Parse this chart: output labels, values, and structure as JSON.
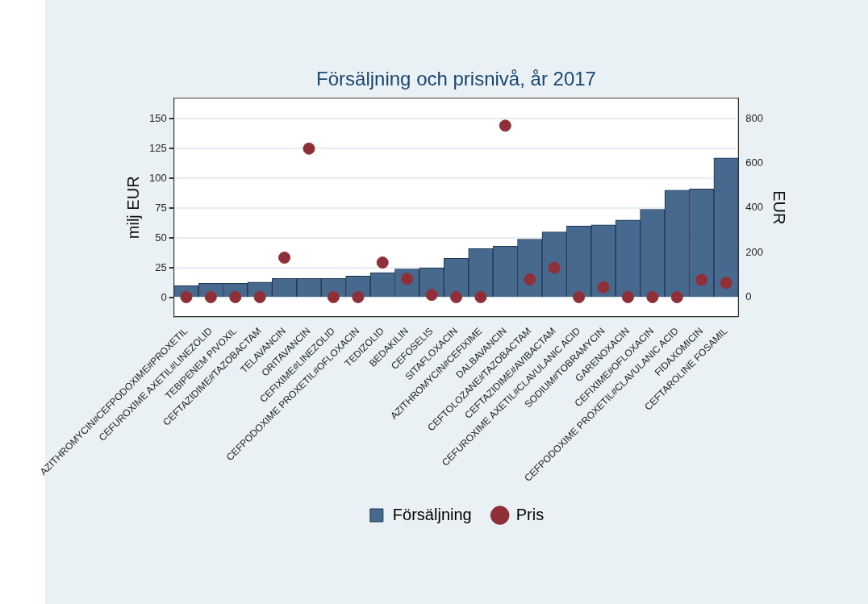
{
  "chart_data": {
    "type": "bar",
    "title": "Försäljning och prisnivå, år 2017",
    "ylabel": "milj EUR",
    "y2label": "EUR",
    "categories": [
      "AZITHROMYCIN#CEFPODOXIME#PROXETIL",
      "CEFUROXIME AXETIL#LINEZOLID",
      "TEBIPENEM PIVOXIL",
      "CEFTAZIDIME#TAZOBACTAM",
      "TELAVANCIN",
      "ORITAVANCIN",
      "CEFIXIME#LINEZOLID",
      "CEFPODOXIME PROXETIL#OFLOXACIN",
      "TEDIZOLID",
      "BEDAKILIN",
      "CEFOSELIS",
      "SITAFLOXACIN",
      "AZITHROMYCIN#CEFIXIME",
      "DALBAVANCIN",
      "CEFTOLOZANE#TAZOBACTAM",
      "CEFTAZIDIME#AVIBACTAM",
      "CEFUROXIME AXETIL#CLAVULANIC ACID",
      "SODIUM#TOBRAMYCIN",
      "GARENOXACIN",
      "CEFIXIME#OFLOXACIN",
      "CEFPODOXIME PROXETIL#CLAVULANIC ACID",
      "FIDAXOMICIN",
      "CEFTAROLINE FOSAMIL"
    ],
    "series": [
      {
        "name": "Försäljning",
        "color": "#48698e",
        "values": [
          10,
          12,
          12,
          13,
          16,
          16,
          16,
          18,
          21,
          24,
          25,
          33,
          41,
          43,
          49,
          55,
          60,
          61,
          65,
          74,
          90,
          91,
          117
        ]
      },
      {
        "name": "Pris",
        "type": "scatter",
        "axis": "y2",
        "color": "#8f3038",
        "x": [
          "AZITHROMYCIN#CEFPODOXIME#PROXETIL",
          "CEFUROXIME AXETIL#LINEZOLID",
          "TEBIPENEM PIVOXIL",
          "CEFTAZIDIME#TAZOBACTAM",
          "TELAVANCIN",
          "ORITAVANCIN",
          "CEFIXIME#LINEZOLID",
          "CEFPODOXIME PROXETIL#OFLOXACIN",
          "TEDIZOLID",
          "BEDAKILIN",
          "CEFOSELIS",
          "SITAFLOXACIN",
          "AZITHROMYCIN#CEFIXIME",
          "DALBAVANCIN",
          "CEFTOLOZANE#TAZOBACTAM",
          "CEFTAZIDIME#AVIBACTAM",
          "CEFUROXIME AXETIL#CLAVULANIC ACID",
          "SODIUM#TOBRAMYCIN",
          "GARENOXACIN",
          "CEFIXIME#OFLOXACIN",
          "CEFPODOXIME PROXETIL#CLAVULANIC ACID",
          "FIDAXOMICIN",
          "CEFTAROLINE FOSAMIL"
        ],
        "values": [
          0,
          0,
          0,
          0,
          177,
          666,
          0,
          0,
          155,
          82,
          10,
          0,
          0,
          769,
          80,
          132,
          0,
          44,
          0,
          0,
          0,
          77,
          64
        ]
      }
    ],
    "ylim": [
      -16,
      167
    ],
    "yticks": [
      0,
      25,
      50,
      75,
      100,
      125,
      150
    ],
    "y2lim": [
      -88,
      892
    ],
    "y2ticks": [
      0,
      200,
      400,
      600,
      800
    ],
    "grid": "y",
    "legend": "bottom",
    "marker": "circle"
  }
}
